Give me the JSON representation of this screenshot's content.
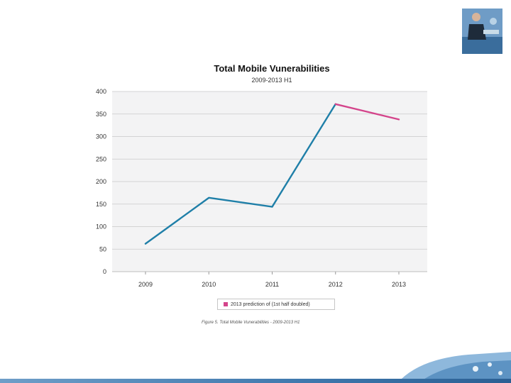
{
  "chart_data": {
    "type": "line",
    "title": "Total Mobile Vunerabilities",
    "subtitle": "2009-2013 H1",
    "categories": [
      "2009",
      "2010",
      "2011",
      "2012",
      "2013"
    ],
    "ylim": [
      0,
      400
    ],
    "yticks": [
      0,
      50,
      100,
      150,
      200,
      250,
      300,
      350,
      400
    ],
    "series": [
      {
        "name": "Total mobile vulnerabilities",
        "values": [
          62,
          164,
          144,
          372,
          null
        ]
      },
      {
        "name": "2013 prediction of (1st half doubled)",
        "values": [
          null,
          null,
          null,
          372,
          338
        ]
      }
    ],
    "legend": "2013 prediction of (1st half doubled)",
    "grid": true
  },
  "caption": "Figure 5. Total Mobile Vunerabilities - 2009-2013 H1",
  "colors": {
    "series": "#1f7fa8",
    "prediction": "#d4448b",
    "plot_bg": "#f3f3f4",
    "grid": "#c9c9c9"
  }
}
